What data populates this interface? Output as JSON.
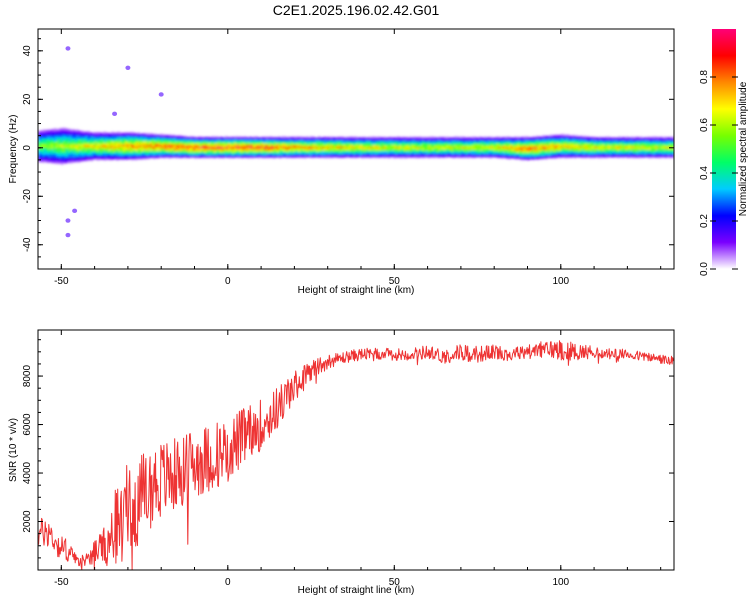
{
  "figure": {
    "title": "C2E1.2025.196.02.42.G01"
  },
  "chart_data": [
    {
      "type": "heatmap",
      "name": "spectrogram",
      "xlabel": "Height of straight line (km)",
      "ylabel": "Frequency (Hz)",
      "xlim": [
        -57,
        134
      ],
      "ylim": [
        -50,
        49
      ],
      "xticks": [
        -50,
        0,
        50,
        100
      ],
      "yticks": [
        -40,
        -20,
        0,
        20,
        40
      ],
      "grid": false,
      "description_of_values": "Normalized spectral amplitude concentrated in a narrow band around 0 Hz across all heights; broader and noisier band (about -8 to +8 Hz) below -20 km, narrowing to about -3 to +3 Hz above 20 km; scattered weak points at ~+41, +33, +14, -26, -36 Hz near -50 to -35 km.",
      "band": [
        {
          "x": -57,
          "lower": -5,
          "upper": 6,
          "peak": 0.6
        },
        {
          "x": -50,
          "lower": -6,
          "upper": 7,
          "peak": 0.65
        },
        {
          "x": -40,
          "lower": -4,
          "upper": 5,
          "peak": 0.75
        },
        {
          "x": -30,
          "lower": -4,
          "upper": 5,
          "peak": 0.85
        },
        {
          "x": -20,
          "lower": -3,
          "upper": 4,
          "peak": 0.9
        },
        {
          "x": -10,
          "lower": -3,
          "upper": 3,
          "peak": 0.95
        },
        {
          "x": 0,
          "lower": -3,
          "upper": 3,
          "peak": 0.95
        },
        {
          "x": 10,
          "lower": -3,
          "upper": 3,
          "peak": 0.95
        },
        {
          "x": 20,
          "lower": -3,
          "upper": 3,
          "peak": 0.85
        },
        {
          "x": 40,
          "lower": -3,
          "upper": 3,
          "peak": 0.75
        },
        {
          "x": 60,
          "lower": -3,
          "upper": 3,
          "peak": 0.7
        },
        {
          "x": 80,
          "lower": -3,
          "upper": 3,
          "peak": 0.75
        },
        {
          "x": 90,
          "lower": -4,
          "upper": 3,
          "peak": 0.9
        },
        {
          "x": 100,
          "lower": -3,
          "upper": 4,
          "peak": 0.8
        },
        {
          "x": 110,
          "lower": -3,
          "upper": 3,
          "peak": 0.75
        },
        {
          "x": 134,
          "lower": -3,
          "upper": 3,
          "peak": 0.7
        }
      ],
      "scatter_points": [
        {
          "x": -48,
          "y": 41
        },
        {
          "x": -30,
          "y": 33
        },
        {
          "x": -20,
          "y": 22
        },
        {
          "x": -34,
          "y": 14
        },
        {
          "x": -46,
          "y": -26
        },
        {
          "x": -48,
          "y": -30
        },
        {
          "x": -48,
          "y": -36
        }
      ]
    },
    {
      "type": "colorbar",
      "name": "amplitude-scale",
      "label": "Normalized spectral amplitude",
      "ticks": [
        0.0,
        0.2,
        0.4,
        0.6,
        0.8
      ],
      "tick_labels": [
        "0.0",
        "0.2",
        "0.4",
        "0.6",
        "0.8"
      ],
      "range": [
        0,
        1
      ],
      "colormap": [
        "#ffffff",
        "#7a00ff",
        "#0000ff",
        "#00ccff",
        "#00ff66",
        "#77ff00",
        "#ffff00",
        "#ff8800",
        "#ff0000",
        "#ff0077"
      ]
    },
    {
      "type": "line",
      "name": "snr",
      "xlabel": "Height of straight line (km)",
      "ylabel": "SNR (10 * v/v)",
      "xlim": [
        -57,
        134
      ],
      "ylim": [
        0,
        9900
      ],
      "xticks": [
        -50,
        0,
        50,
        100
      ],
      "yticks": [
        2000,
        4000,
        6000,
        8000
      ],
      "color": "#ee3333",
      "grid": false,
      "x": [
        -57,
        -54,
        -51,
        -48,
        -45,
        -42,
        -39,
        -36,
        -33,
        -30,
        -27,
        -24,
        -21,
        -18,
        -15,
        -12,
        -9,
        -6,
        -3,
        0,
        3,
        6,
        9,
        12,
        15,
        18,
        21,
        24,
        27,
        30,
        33,
        36,
        40,
        45,
        50,
        55,
        60,
        65,
        70,
        75,
        80,
        85,
        90,
        95,
        100,
        105,
        110,
        115,
        120,
        125,
        130,
        134
      ],
      "y": [
        1500,
        1600,
        1000,
        800,
        300,
        500,
        900,
        1000,
        2000,
        2500,
        2800,
        3300,
        3700,
        3800,
        4000,
        4300,
        4500,
        4600,
        4800,
        5000,
        5300,
        5600,
        5900,
        6200,
        6700,
        7200,
        7700,
        8100,
        8400,
        8600,
        8700,
        8800,
        8900,
        8900,
        8900,
        8900,
        9000,
        8800,
        9000,
        8900,
        9000,
        8900,
        9000,
        9100,
        9100,
        9000,
        9000,
        8900,
        8900,
        8800,
        8700,
        8600
      ],
      "noise": [
        600,
        700,
        500,
        500,
        200,
        300,
        600,
        900,
        1800,
        1900,
        1800,
        1700,
        1700,
        1600,
        1500,
        1500,
        1500,
        1400,
        1400,
        1300,
        1300,
        1200,
        1100,
        1000,
        900,
        800,
        600,
        500,
        400,
        300,
        250,
        250,
        250,
        250,
        250,
        250,
        300,
        300,
        350,
        350,
        300,
        300,
        300,
        350,
        450,
        350,
        250,
        250,
        200,
        200,
        200,
        200
      ]
    }
  ]
}
